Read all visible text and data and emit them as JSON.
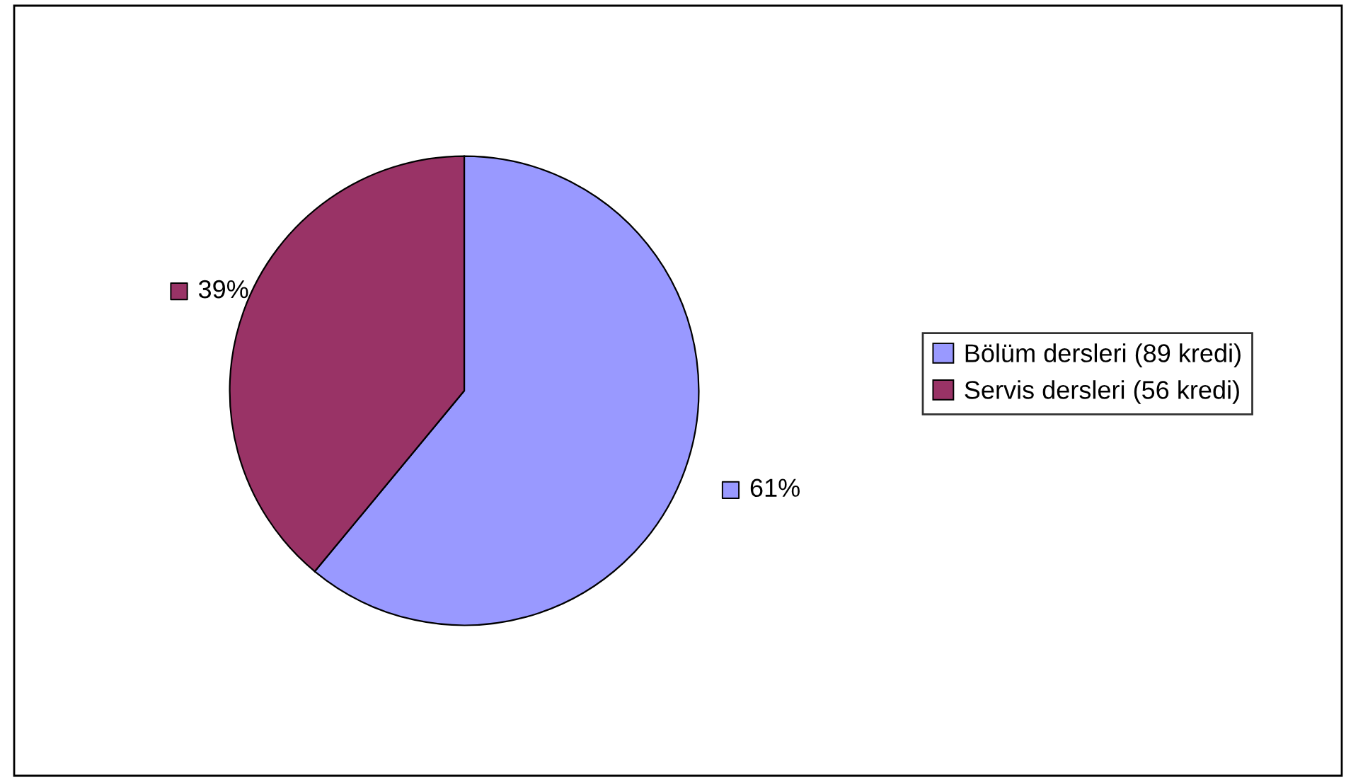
{
  "chart_data": {
    "type": "pie",
    "categories": [
      "Bölüm dersleri (89 kredi)",
      "Servis dersleri (56 kredi)"
    ],
    "values": [
      61,
      39
    ],
    "colors": [
      "#9999ff",
      "#993366"
    ],
    "value_labels": [
      "61%",
      "39%"
    ],
    "legend": "right"
  }
}
